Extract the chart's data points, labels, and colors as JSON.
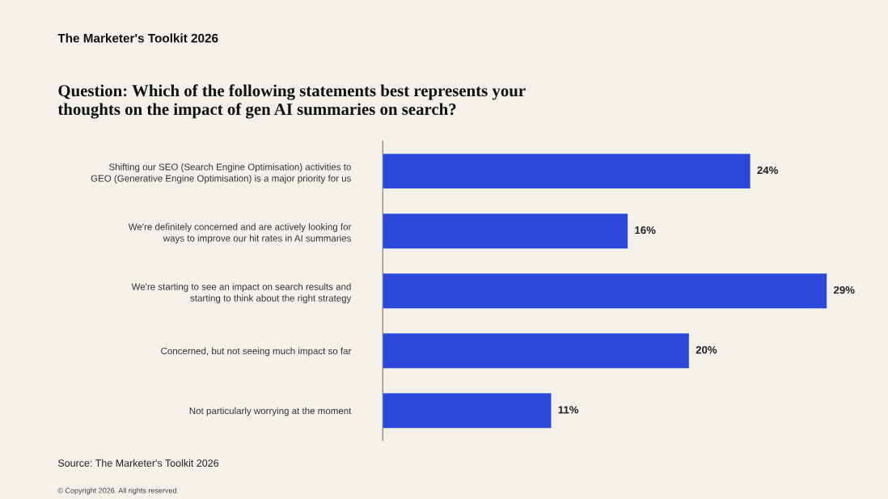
{
  "chart_data": {
    "type": "bar",
    "orientation": "horizontal",
    "title": "The Marketer's Toolkit 2026",
    "subtitle": "Question: Which of the following statements best represents your\nthoughts on the impact of gen AI summaries on search?",
    "categories": [
      "Shifting our SEO (Search Engine Optimisation) activities to\nGEO (Generative Engine Optimisation) is a major priority for us",
      "We're definitely concerned and are actively looking for\nways to improve our hit rates in AI summaries",
      "We're starting to see an impact on search results and\nstarting to think about the right strategy",
      "Concerned, but not seeing much impact so far",
      "Not particularly worrying at the moment"
    ],
    "values": [
      24,
      16,
      29,
      20,
      11
    ],
    "value_labels": [
      "24%",
      "16%",
      "29%",
      "20%",
      "11%"
    ],
    "color": "#2b48d8",
    "tick_labels": "y",
    "annotations": [
      "Source: The Marketer's Toolkit 2026",
      "© Copyright 2026. All rights reserved."
    ]
  }
}
